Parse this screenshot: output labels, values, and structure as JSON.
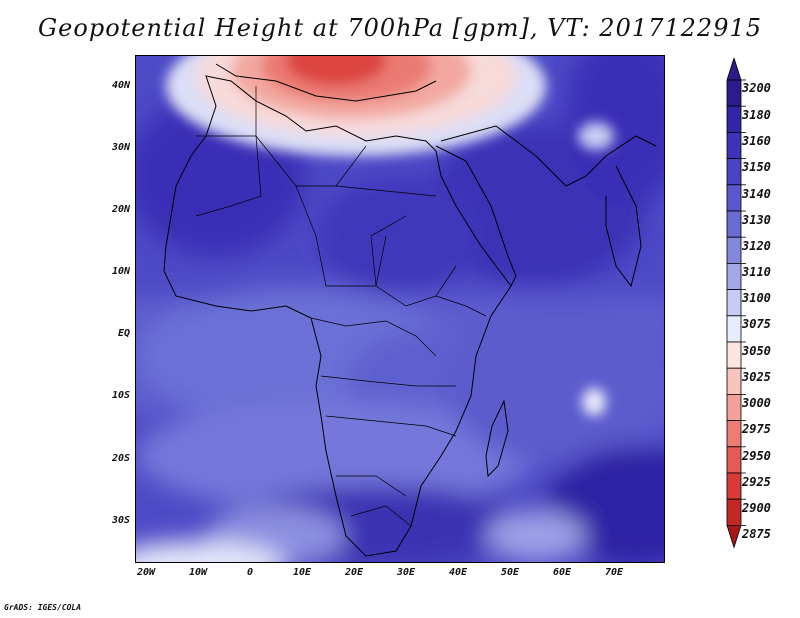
{
  "title": "Geopotential Height at 700hPa [gpm], VT: 2017122915",
  "credit": "GrADS: IGES/COLA",
  "map": {
    "region": "Africa and surrounding oceans",
    "lat_labels": [
      "40N",
      "30N",
      "20N",
      "10N",
      "EQ",
      "10S",
      "20S",
      "30S"
    ],
    "lon_labels": [
      "20W",
      "10W",
      "0",
      "10E",
      "20E",
      "30E",
      "40E",
      "50E",
      "60E",
      "70E"
    ]
  },
  "colorbar": {
    "levels": [
      "3200",
      "3180",
      "3160",
      "3150",
      "3140",
      "3130",
      "3120",
      "3110",
      "3100",
      "3075",
      "3050",
      "3025",
      "3000",
      "2975",
      "2950",
      "2925",
      "2900",
      "2875"
    ],
    "colors": [
      "#2a1c8c",
      "#3326a6",
      "#3d32b8",
      "#4a44c4",
      "#5a58cc",
      "#6a6cd4",
      "#8488dc",
      "#a4a8e8",
      "#c8ccf4",
      "#e8ecfc",
      "#fce4e0",
      "#f8c4bc",
      "#f4a098",
      "#ec7c74",
      "#e45a54",
      "#d83a36",
      "#c42824",
      "#a81818"
    ]
  }
}
